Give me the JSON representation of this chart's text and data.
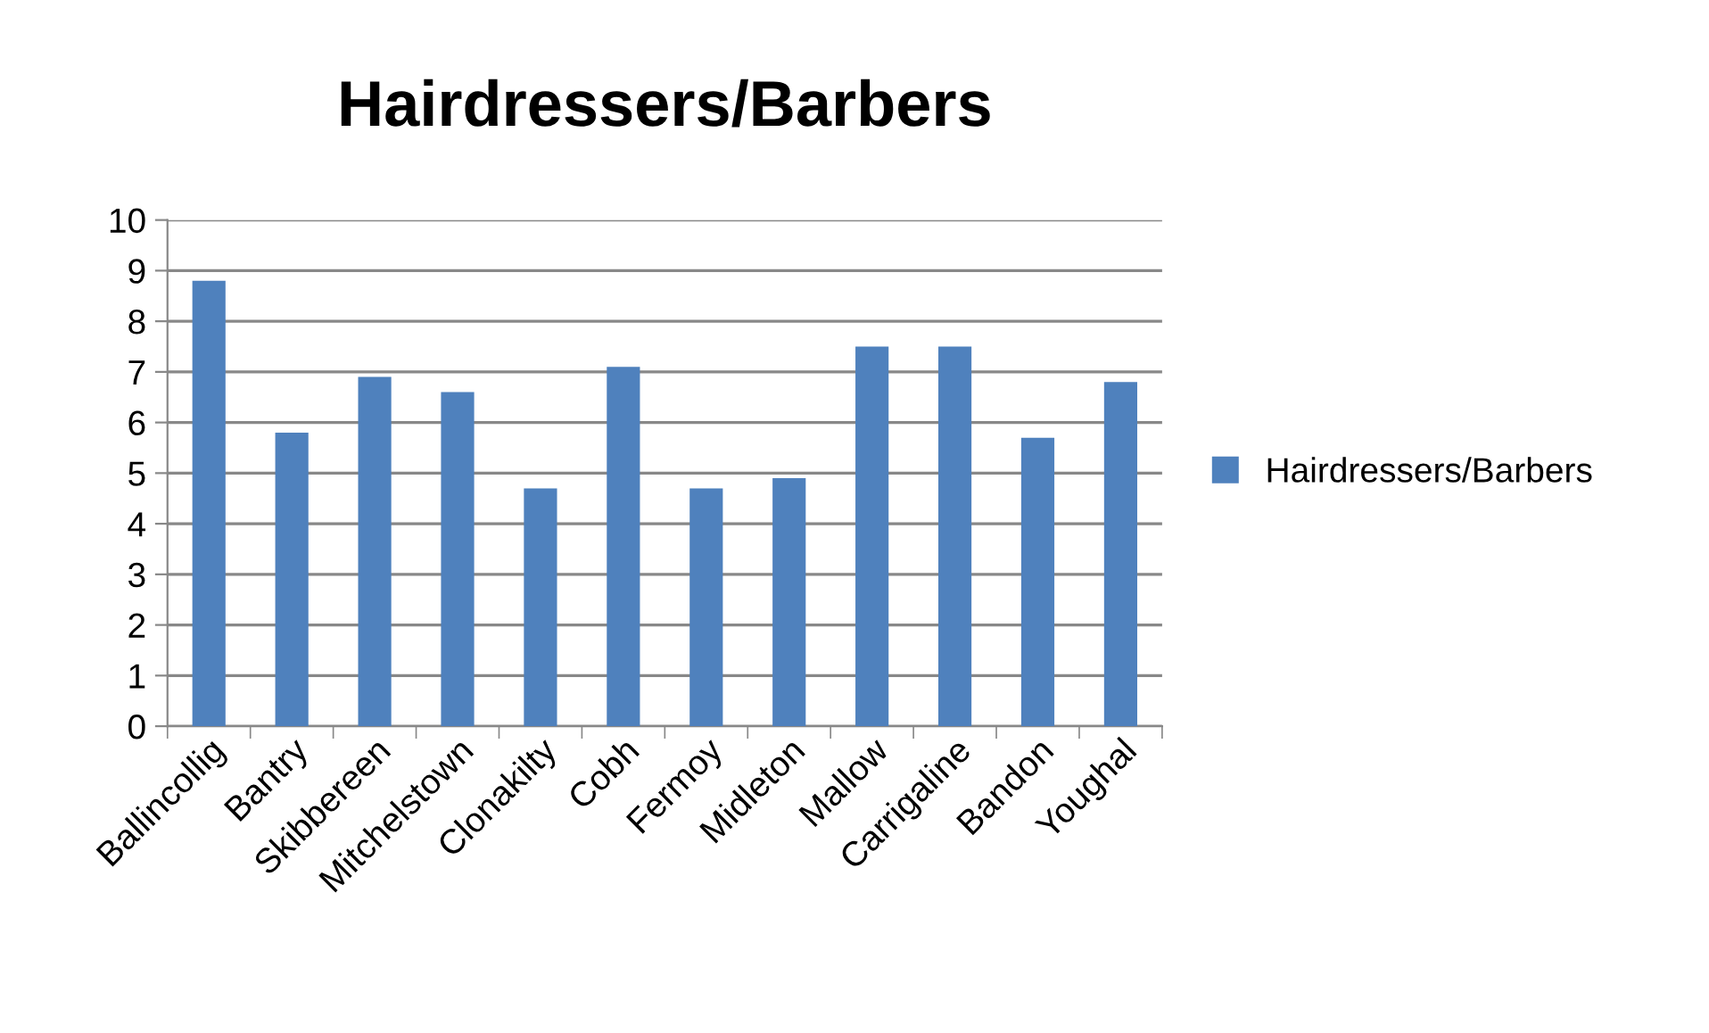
{
  "chart_data": {
    "type": "bar",
    "title": "Hairdressers/Barbers",
    "categories": [
      "Ballincollig",
      "Bantry",
      "Skibbereen",
      "Mitchelstown",
      "Clonakilty",
      "Cobh",
      "Fermoy",
      "Midleton",
      "Mallow",
      "Carrigaline",
      "Bandon",
      "Youghal"
    ],
    "series": [
      {
        "name": "Hairdressers/Barbers",
        "color": "#4f81bd",
        "values": [
          8.8,
          5.8,
          6.9,
          6.6,
          4.7,
          7.1,
          4.7,
          4.9,
          7.5,
          7.5,
          5.7,
          6.8
        ]
      }
    ],
    "ylim": [
      0,
      10
    ],
    "yticks": [
      0,
      1,
      2,
      3,
      4,
      5,
      6,
      7,
      8,
      9,
      10
    ],
    "grid": "y",
    "legend": "right"
  }
}
